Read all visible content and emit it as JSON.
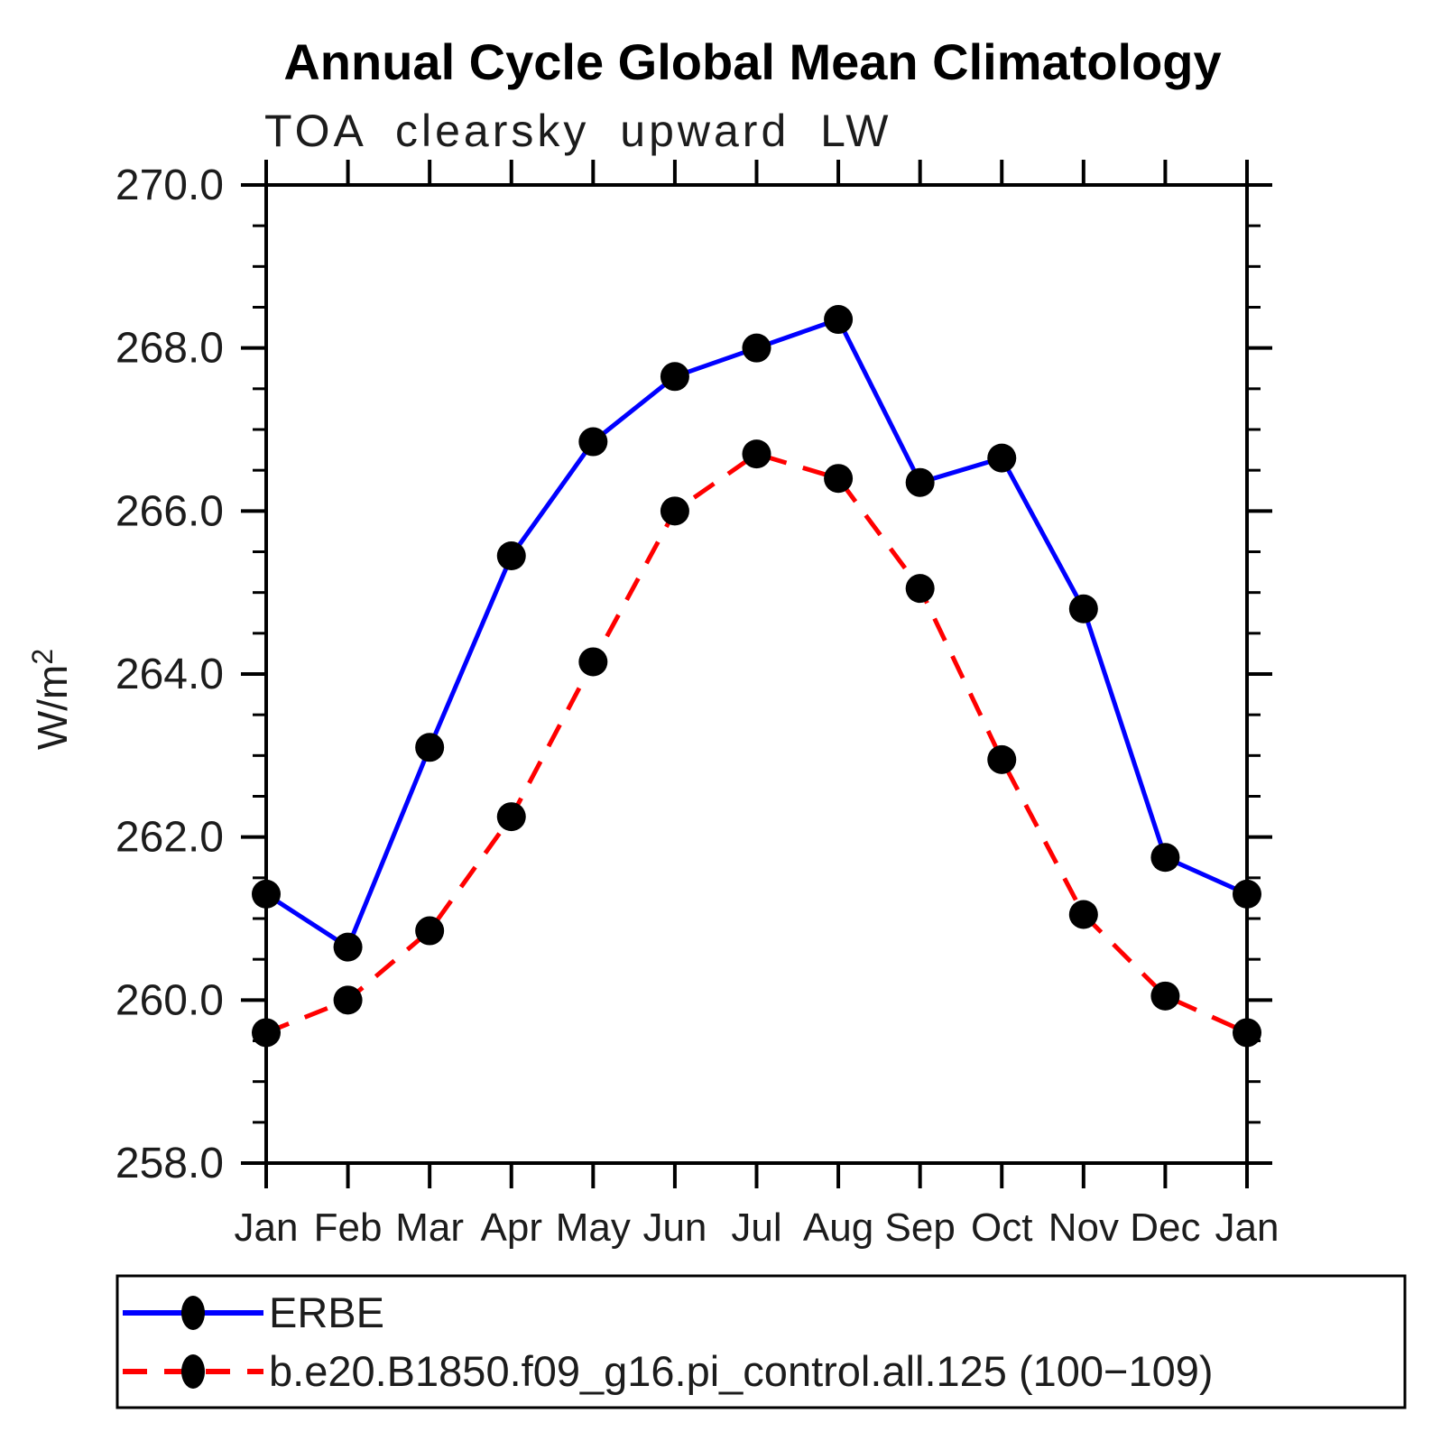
{
  "chart_data": {
    "type": "line",
    "title": "Annual Cycle Global Mean Climatology",
    "subtitle": "TOA clearsky upward LW",
    "ylabel": "W/m²",
    "xlabel": "",
    "categories": [
      "Jan",
      "Feb",
      "Mar",
      "Apr",
      "May",
      "Jun",
      "Jul",
      "Aug",
      "Sep",
      "Oct",
      "Nov",
      "Dec",
      "Jan"
    ],
    "ylim": [
      258.0,
      270.0
    ],
    "ytick_step": 2.0,
    "yminor_step": 0.5,
    "ytick_labels": [
      "258.0",
      "260.0",
      "262.0",
      "264.0",
      "266.0",
      "268.0",
      "270.0"
    ],
    "grid": "off",
    "legend_position": "bottom",
    "series": [
      {
        "name": "ERBE",
        "color": "#0000ff",
        "style": "solid",
        "marker": "circle",
        "marker_color": "#000000",
        "values": [
          261.3,
          260.65,
          263.1,
          265.45,
          266.85,
          267.65,
          268.0,
          268.35,
          266.35,
          266.65,
          264.8,
          261.75,
          261.3
        ]
      },
      {
        "name": "b.e20.B1850.f09_g16.pi_control.all.125 (100−109)",
        "color": "#ff0000",
        "style": "dashed",
        "marker": "circle",
        "marker_color": "#000000",
        "values": [
          259.6,
          260.0,
          260.85,
          262.25,
          264.15,
          266.0,
          266.7,
          266.4,
          265.05,
          262.95,
          261.05,
          260.05,
          259.6
        ]
      }
    ],
    "axis_color": "#000000",
    "background_color": "#ffffff"
  }
}
